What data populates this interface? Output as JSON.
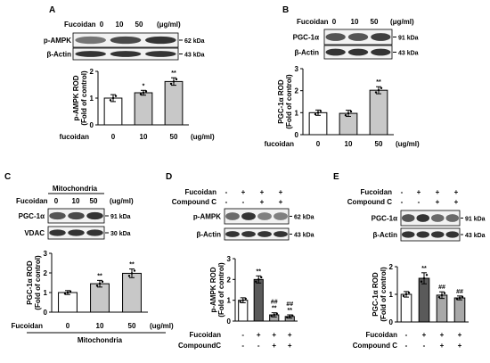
{
  "figure": {
    "panels": [
      {
        "letter": "A",
        "header": {
          "treatment_label": "Fucoidan",
          "doses": [
            "0",
            "10",
            "50"
          ],
          "unit": "(μg/ml)",
          "group_label": ""
        },
        "blots": [
          {
            "label": "p-AMPK",
            "kda": "62 kDa",
            "intensities": [
              0.55,
              0.75,
              0.85
            ]
          },
          {
            "label": "β-Actin",
            "kda": "43 kDa",
            "intensities": [
              0.85,
              0.85,
              0.85
            ]
          }
        ],
        "chart_data": {
          "type": "bar",
          "ylabel_line1": "p-AMPK ROD",
          "ylabel_line2": "(Fold of control)",
          "ylim": [
            0,
            2
          ],
          "yticks": [
            "0",
            "1",
            "2"
          ],
          "categories": [
            "0",
            "10",
            "50"
          ],
          "values": [
            1.0,
            1.2,
            1.62
          ],
          "errors": [
            0.13,
            0.09,
            0.14
          ],
          "fills": [
            "#ffffff",
            "#c8c8c8",
            "#c8c8c8"
          ],
          "significance": [
            "",
            "*",
            "**"
          ],
          "xlabel_left": "fucoidan",
          "xlabel_right": "(ug/ml)",
          "xlabel_bottom": ""
        }
      },
      {
        "letter": "B",
        "header": {
          "treatment_label": "Fucoidan",
          "doses": [
            "0",
            "10",
            "50"
          ],
          "unit": "(μg/ml)",
          "group_label": ""
        },
        "blots": [
          {
            "label": "PGC-1α",
            "kda": "91 kDa",
            "intensities": [
              0.7,
              0.7,
              0.8
            ]
          },
          {
            "label": "β-Actin",
            "kda": "43 kDa",
            "intensities": [
              0.85,
              0.85,
              0.85
            ]
          }
        ],
        "chart_data": {
          "type": "bar",
          "ylabel_line1": "PGC-1α ROD",
          "ylabel_line2": "(Fold of control)",
          "ylim": [
            0,
            3
          ],
          "yticks": [
            "0",
            "1",
            "2",
            "3"
          ],
          "categories": [
            "0",
            "10",
            "50"
          ],
          "values": [
            1.0,
            0.97,
            2.02
          ],
          "errors": [
            0.12,
            0.14,
            0.16
          ],
          "fills": [
            "#ffffff",
            "#c8c8c8",
            "#c8c8c8"
          ],
          "significance": [
            "",
            "",
            "**"
          ],
          "xlabel_left": "fucoidan",
          "xlabel_right": "(ug/ml)",
          "xlabel_bottom": ""
        }
      },
      {
        "letter": "C",
        "header": {
          "treatment_label": "Fucoidan",
          "doses": [
            "0",
            "10",
            "50"
          ],
          "unit": "(ug/ml)",
          "group_label": "Mitochondria"
        },
        "blots": [
          {
            "label": "PGC-1α",
            "kda": "91 kDa",
            "intensities": [
              0.7,
              0.75,
              0.85
            ]
          },
          {
            "label": "VDAC",
            "kda": "30 kDa",
            "intensities": [
              0.85,
              0.85,
              0.85
            ]
          }
        ],
        "chart_data": {
          "type": "bar",
          "ylabel_line1": "PGC-1α ROD",
          "ylabel_line2": "(Fold of control)",
          "ylim": [
            0,
            3
          ],
          "yticks": [
            "0",
            "1",
            "2",
            "3"
          ],
          "categories": [
            "0",
            "10",
            "50"
          ],
          "values": [
            1.0,
            1.45,
            1.98
          ],
          "errors": [
            0.1,
            0.17,
            0.22
          ],
          "fills": [
            "#ffffff",
            "#c8c8c8",
            "#c8c8c8"
          ],
          "significance": [
            "",
            "**",
            "**"
          ],
          "xlabel_left": "Fucoidan",
          "xlabel_right": "(ug/ml)",
          "xlabel_bottom": "Mitochondria"
        }
      },
      {
        "letter": "D",
        "header": {
          "rows": [
            {
              "label": "Fucoidan",
              "signs": [
                "-",
                "+",
                "+",
                "+"
              ]
            },
            {
              "label": "Compound C",
              "signs": [
                "-",
                "-",
                "+",
                "+"
              ]
            }
          ]
        },
        "blots": [
          {
            "label": "p-AMPK",
            "kda": "62 kDa",
            "intensities": [
              0.6,
              0.85,
              0.5,
              0.5
            ]
          },
          {
            "label": "β-Actin",
            "kda": "43 kDa",
            "intensities": [
              0.85,
              0.85,
              0.85,
              0.85
            ]
          }
        ],
        "chart_data": {
          "type": "bar",
          "ylabel_line1": "p-AMPK ROD",
          "ylabel_line2": "(Fold of control)",
          "ylim": [
            0,
            3
          ],
          "yticks": [
            "0",
            "1",
            "2",
            "3"
          ],
          "categories": [
            "-/-",
            "+/-",
            "+/+",
            "+/+"
          ],
          "values": [
            1.0,
            2.0,
            0.3,
            0.22
          ],
          "errors": [
            0.12,
            0.17,
            0.1,
            0.08
          ],
          "fills": [
            "#ffffff",
            "#5a5a5a",
            "#a8a8a8",
            "#a8a8a8"
          ],
          "significance": [
            "",
            "**",
            "##\n**",
            "##\n**"
          ],
          "row_labels": [
            {
              "label": "Fucoidan",
              "signs": [
                "-",
                "+",
                "+",
                "+"
              ]
            },
            {
              "label": "CompoundC",
              "signs": [
                "-",
                "-",
                "+",
                "+"
              ]
            }
          ]
        }
      },
      {
        "letter": "E",
        "header": {
          "rows": [
            {
              "label": "Fucoidan",
              "signs": [
                "-",
                "+",
                "+",
                "+"
              ]
            },
            {
              "label": "Compound C",
              "signs": [
                "-",
                "-",
                "+",
                "+"
              ]
            }
          ]
        },
        "blots": [
          {
            "label": "PGC-1α",
            "kda": "91 kDa",
            "intensities": [
              0.7,
              0.85,
              0.6,
              0.6
            ]
          },
          {
            "label": "β-Actin",
            "kda": "43 kDa",
            "intensities": [
              0.85,
              0.85,
              0.85,
              0.85
            ]
          }
        ],
        "chart_data": {
          "type": "bar",
          "ylabel_line1": "PGC-1α ROD",
          "ylabel_line2": "(Fold of control)",
          "ylim": [
            0,
            2
          ],
          "yticks": [
            "0",
            "1",
            "2"
          ],
          "categories": [
            "-/-",
            "+/-",
            "+/+",
            "+/+"
          ],
          "values": [
            1.0,
            1.58,
            0.97,
            0.87
          ],
          "errors": [
            0.1,
            0.2,
            0.12,
            0.07
          ],
          "fills": [
            "#ffffff",
            "#5a5a5a",
            "#a8a8a8",
            "#a8a8a8"
          ],
          "significance": [
            "",
            "**",
            "##",
            "##"
          ],
          "row_labels": [
            {
              "label": "Fucoidan",
              "signs": [
                "-",
                "+",
                "+",
                "+"
              ]
            },
            {
              "label": "Compound C",
              "signs": [
                "-",
                "-",
                "+",
                "+"
              ]
            }
          ]
        }
      }
    ]
  }
}
